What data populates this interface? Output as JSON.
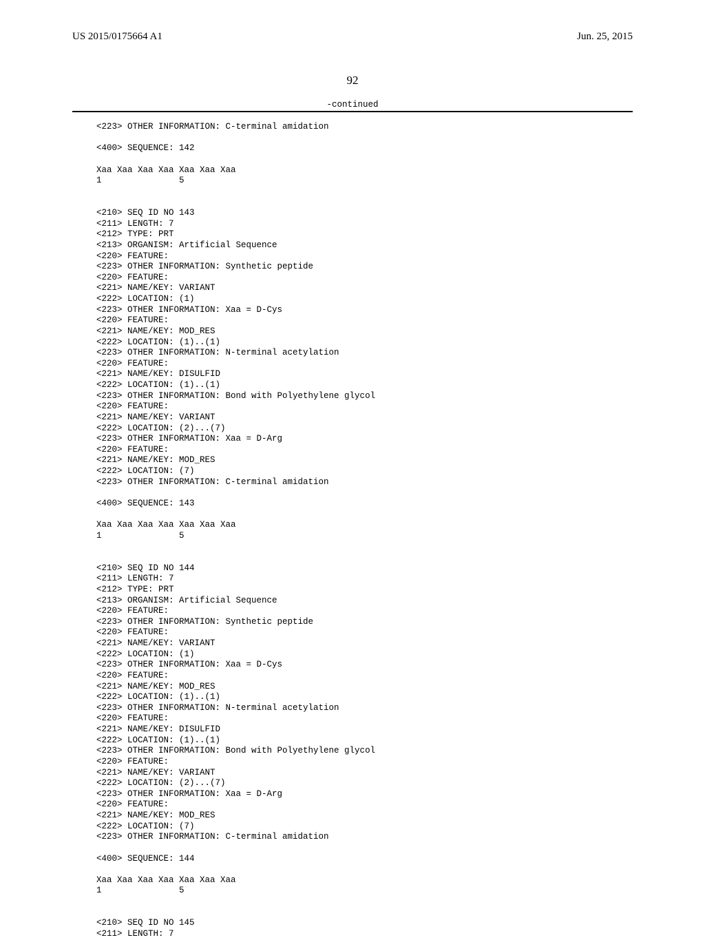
{
  "header": {
    "pub_number": "US 2015/0175664 A1",
    "pub_date": "Jun. 25, 2015"
  },
  "page_number": "92",
  "continued_label": "-continued",
  "sequence_text": "<223> OTHER INFORMATION: C-terminal amidation\n\n<400> SEQUENCE: 142\n\nXaa Xaa Xaa Xaa Xaa Xaa Xaa\n1               5\n\n\n<210> SEQ ID NO 143\n<211> LENGTH: 7\n<212> TYPE: PRT\n<213> ORGANISM: Artificial Sequence\n<220> FEATURE:\n<223> OTHER INFORMATION: Synthetic peptide\n<220> FEATURE:\n<221> NAME/KEY: VARIANT\n<222> LOCATION: (1)\n<223> OTHER INFORMATION: Xaa = D-Cys\n<220> FEATURE:\n<221> NAME/KEY: MOD_RES\n<222> LOCATION: (1)..(1)\n<223> OTHER INFORMATION: N-terminal acetylation\n<220> FEATURE:\n<221> NAME/KEY: DISULFID\n<222> LOCATION: (1)..(1)\n<223> OTHER INFORMATION: Bond with Polyethylene glycol\n<220> FEATURE:\n<221> NAME/KEY: VARIANT\n<222> LOCATION: (2)...(7)\n<223> OTHER INFORMATION: Xaa = D-Arg\n<220> FEATURE:\n<221> NAME/KEY: MOD_RES\n<222> LOCATION: (7)\n<223> OTHER INFORMATION: C-terminal amidation\n\n<400> SEQUENCE: 143\n\nXaa Xaa Xaa Xaa Xaa Xaa Xaa\n1               5\n\n\n<210> SEQ ID NO 144\n<211> LENGTH: 7\n<212> TYPE: PRT\n<213> ORGANISM: Artificial Sequence\n<220> FEATURE:\n<223> OTHER INFORMATION: Synthetic peptide\n<220> FEATURE:\n<221> NAME/KEY: VARIANT\n<222> LOCATION: (1)\n<223> OTHER INFORMATION: Xaa = D-Cys\n<220> FEATURE:\n<221> NAME/KEY: MOD_RES\n<222> LOCATION: (1)..(1)\n<223> OTHER INFORMATION: N-terminal acetylation\n<220> FEATURE:\n<221> NAME/KEY: DISULFID\n<222> LOCATION: (1)..(1)\n<223> OTHER INFORMATION: Bond with Polyethylene glycol\n<220> FEATURE:\n<221> NAME/KEY: VARIANT\n<222> LOCATION: (2)...(7)\n<223> OTHER INFORMATION: Xaa = D-Arg\n<220> FEATURE:\n<221> NAME/KEY: MOD_RES\n<222> LOCATION: (7)\n<223> OTHER INFORMATION: C-terminal amidation\n\n<400> SEQUENCE: 144\n\nXaa Xaa Xaa Xaa Xaa Xaa Xaa\n1               5\n\n\n<210> SEQ ID NO 145\n<211> LENGTH: 7"
}
